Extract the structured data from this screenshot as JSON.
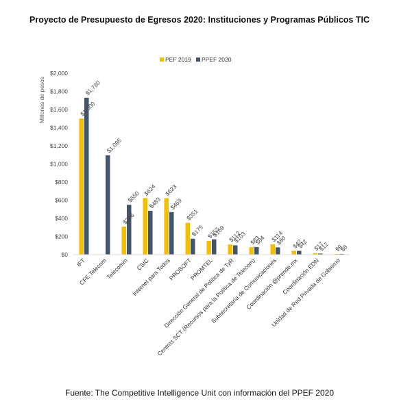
{
  "title": "Proyecto de Presupuesto de Egresos 2020: Instituciones y Programas Públicos TIC",
  "source": "Fuente: The Competitive Intelligence Unit con información del PPEF 2020",
  "colors": {
    "pef2019": "#F5BE00",
    "ppef2020": "#44546A",
    "grid": "#d9d9d9"
  },
  "chart_data": {
    "type": "bar",
    "title": "Proyecto de Presupuesto de Egresos 2020: Instituciones y Programas Públicos TIC",
    "ylabel": "Millones de pesos",
    "xlabel": "",
    "ylim": [
      0,
      2000
    ],
    "yticks": [
      "$0",
      "$200",
      "$400",
      "$600",
      "$800",
      "$1,000",
      "$1,200",
      "$1,400",
      "$1,600",
      "$1,800",
      "$2,000"
    ],
    "grid": false,
    "legend": "top-center",
    "categories": [
      "IFT",
      "CFE Telecom",
      "Telecomm",
      "CSIC",
      "Internet para Todos",
      "PROSOFT",
      "PROMTEL",
      "Dirección General de Política de TyR",
      "Centros SCT (Recursos para la Política de Telecom)",
      "Subsecretaría de Comunicaciones",
      "Coordinación @prende.mx",
      "Coordinación EDN",
      "Unidad de Red Privada de Gobierno"
    ],
    "series": [
      {
        "name": "PEF 2019",
        "values": [
          1500,
          0,
          308,
          624,
          623,
          351,
          152,
          112,
          83,
          114,
          42,
          17,
          9
        ],
        "labels": [
          "$1,500",
          "",
          "$308",
          "$624",
          "$623",
          "$351",
          "$152",
          "$112",
          "$83",
          "$114",
          "$42",
          "$17",
          "$9"
        ]
      },
      {
        "name": "PPEF 2020",
        "values": [
          1730,
          1095,
          550,
          483,
          469,
          175,
          169,
          103,
          84,
          80,
          42,
          12,
          8
        ],
        "labels": [
          "$1,730",
          "$1,095",
          "$550",
          "$483",
          "$469",
          "$175",
          "$169",
          "$103",
          "$84",
          "$80",
          "$42",
          "$12",
          "$8"
        ]
      }
    ]
  }
}
